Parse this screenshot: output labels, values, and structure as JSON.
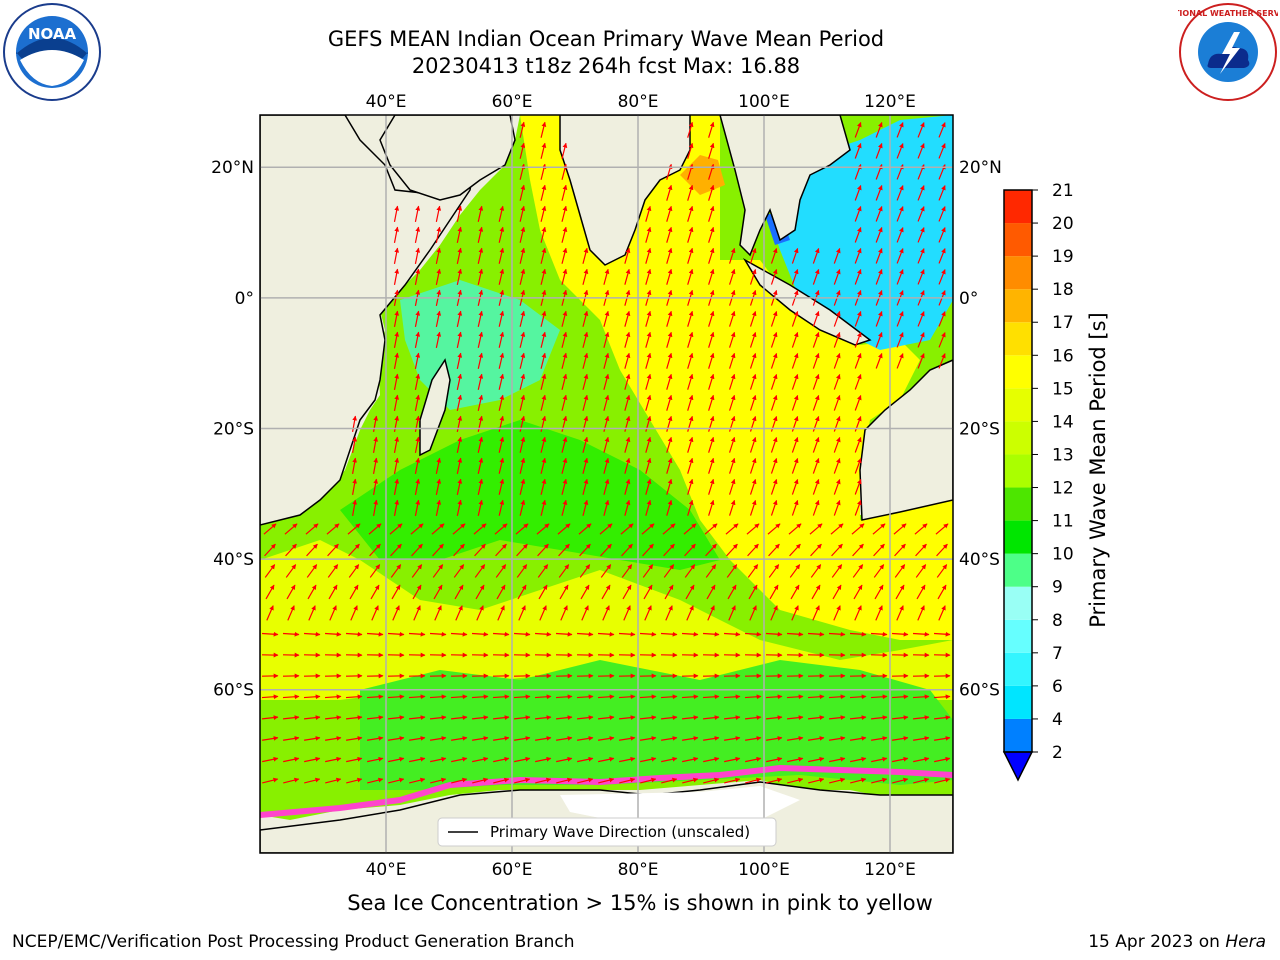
{
  "title": {
    "line1": "GEFS MEAN Indian Ocean Primary Wave Mean Period",
    "line2": "20230413 t18z 264h fcst   Max: 16.88"
  },
  "logos": {
    "left_icon": "noaa-logo",
    "left_text": "NOAA",
    "right_icon": "nws-logo",
    "right_text": "NATIONAL WEATHER SERVICE"
  },
  "map": {
    "lon_ticks": [
      "40°E",
      "60°E",
      "80°E",
      "100°E",
      "120°E"
    ],
    "lon_values": [
      40,
      60,
      80,
      100,
      120
    ],
    "lat_ticks": [
      "20°N",
      "0°",
      "20°S",
      "40°S",
      "60°S"
    ],
    "lat_values": [
      20,
      0,
      -20,
      -40,
      -60
    ],
    "lon_range": [
      20,
      130
    ],
    "lat_range": [
      28,
      -85
    ],
    "grid": true,
    "arrow_color": "#ff0000",
    "land_color": "#efefdf",
    "legend_label": "Primary Wave Direction (unscaled)"
  },
  "colorbar": {
    "label": "Primary Wave Mean Period [s]",
    "ticks": [
      "2",
      "4",
      "6",
      "7",
      "8",
      "9",
      "10",
      "11",
      "12",
      "13",
      "14",
      "15",
      "16",
      "17",
      "18",
      "19",
      "20",
      "21"
    ],
    "colors": [
      "#0080ff",
      "#00e5ff",
      "#33f5ff",
      "#66ffff",
      "#99fff5",
      "#4dff88",
      "#00e600",
      "#4de600",
      "#aaff00",
      "#ccff00",
      "#e6ff00",
      "#ffff00",
      "#ffe000",
      "#ffb400",
      "#ff8c00",
      "#ff5a00",
      "#ff2800",
      "#ff0000"
    ],
    "under_color": "#0000ff"
  },
  "note": "Sea Ice Concentration > 15% is shown in pink to yellow",
  "footer": {
    "left": "NCEP/EMC/Verification Post Processing Product Generation Branch",
    "right_date": "15 Apr 2023 on",
    "right_host": "Hera"
  }
}
